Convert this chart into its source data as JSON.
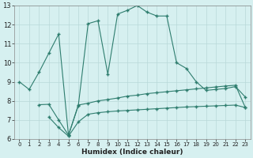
{
  "xlabel": "Humidex (Indice chaleur)",
  "line1_x": [
    0,
    1,
    2,
    3,
    4,
    5,
    6,
    7,
    8,
    9,
    10,
    11,
    12,
    13,
    14,
    15,
    16,
    17,
    18,
    19,
    20,
    21,
    22,
    23
  ],
  "line1_y": [
    9.0,
    8.6,
    9.5,
    10.5,
    11.5,
    6.2,
    7.75,
    12.05,
    12.2,
    9.4,
    12.55,
    12.75,
    13.0,
    12.65,
    12.45,
    12.45,
    10.0,
    9.7,
    9.0,
    8.55,
    8.6,
    8.65,
    8.75,
    8.2
  ],
  "line2_x": [
    2,
    3,
    4,
    5,
    6,
    7,
    8,
    9,
    10,
    11,
    12,
    13,
    14,
    15,
    16,
    17,
    18,
    19,
    20,
    21,
    22,
    23
  ],
  "line2_y": [
    7.8,
    7.82,
    7.0,
    6.2,
    7.78,
    7.88,
    8.0,
    8.07,
    8.15,
    8.25,
    8.3,
    8.38,
    8.43,
    8.48,
    8.53,
    8.58,
    8.63,
    8.68,
    8.73,
    8.78,
    8.82,
    7.65
  ],
  "line3_x": [
    3,
    4,
    5,
    6,
    7,
    8,
    9,
    10,
    11,
    12,
    13,
    14,
    15,
    16,
    17,
    18,
    19,
    20,
    21,
    22,
    23
  ],
  "line3_y": [
    7.15,
    6.6,
    6.15,
    6.9,
    7.3,
    7.38,
    7.43,
    7.47,
    7.5,
    7.53,
    7.56,
    7.59,
    7.62,
    7.65,
    7.68,
    7.7,
    7.72,
    7.74,
    7.76,
    7.78,
    7.65
  ],
  "line_color": "#2e7d6e",
  "bg_color": "#d6f0f0",
  "grid_color": "#b8d8d8",
  "ylim": [
    6,
    13
  ],
  "xlim": [
    -0.5,
    23.5
  ],
  "yticks": [
    6,
    7,
    8,
    9,
    10,
    11,
    12,
    13
  ],
  "xticks": [
    0,
    1,
    2,
    3,
    4,
    5,
    6,
    7,
    8,
    9,
    10,
    11,
    12,
    13,
    14,
    15,
    16,
    17,
    18,
    19,
    20,
    21,
    22,
    23
  ]
}
